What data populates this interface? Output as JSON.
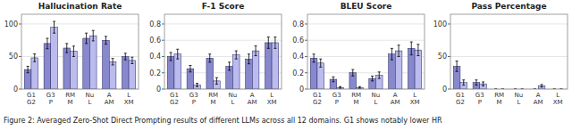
{
  "chart_data": [
    {
      "type": "bar",
      "title": "Hallucination Rate",
      "categories": [
        "G1\nG2",
        "G3\nP",
        "RM\nM",
        "Nu\nL",
        "A\nAM",
        "L\nXM"
      ],
      "series": [
        {
          "color": "#8888cc",
          "values": [
            30,
            70,
            63,
            78,
            75,
            50
          ],
          "errors": [
            5,
            8,
            7,
            8,
            6,
            5
          ]
        },
        {
          "color": "#bbbbee",
          "values": [
            48,
            95,
            58,
            82,
            42,
            44
          ],
          "errors": [
            6,
            9,
            8,
            8,
            5,
            5
          ]
        }
      ],
      "ylim": [
        0,
        115
      ],
      "yticks": [
        0,
        50,
        100
      ]
    },
    {
      "type": "bar",
      "title": "F-1 Score",
      "categories": [
        "G1\nG2",
        "G3\nP",
        "RM\nM",
        "Nu\nL",
        "A\nAM",
        "L\nXM"
      ],
      "series": [
        {
          "color": "#8888cc",
          "values": [
            0.4,
            0.25,
            0.38,
            0.28,
            0.37,
            0.57
          ],
          "errors": [
            0.05,
            0.04,
            0.05,
            0.05,
            0.06,
            0.07
          ]
        },
        {
          "color": "#bbbbee",
          "values": [
            0.43,
            0.05,
            0.1,
            0.42,
            0.47,
            0.57
          ],
          "errors": [
            0.06,
            0.02,
            0.04,
            0.05,
            0.06,
            0.07
          ]
        }
      ],
      "ylim": [
        0,
        0.92
      ],
      "yticks": [
        0,
        0.2,
        0.4,
        0.6,
        0.8
      ]
    },
    {
      "type": "bar",
      "title": "BLEU Score",
      "categories": [
        "G1\nG2",
        "G3\nP",
        "RM\nM",
        "Nu\nL",
        "A\nAM",
        "L\nXM"
      ],
      "series": [
        {
          "color": "#8888cc",
          "values": [
            0.38,
            0.12,
            0.2,
            0.13,
            0.43,
            0.5
          ],
          "errors": [
            0.05,
            0.03,
            0.04,
            0.03,
            0.07,
            0.08
          ]
        },
        {
          "color": "#bbbbee",
          "values": [
            0.32,
            0.02,
            0.02,
            0.17,
            0.47,
            0.48
          ],
          "errors": [
            0.05,
            0.01,
            0.01,
            0.04,
            0.07,
            0.07
          ]
        }
      ],
      "ylim": [
        0,
        0.92
      ],
      "yticks": [
        0,
        0.2,
        0.4,
        0.6,
        0.8
      ]
    },
    {
      "type": "bar",
      "title": "Pass Percentage",
      "categories": [
        "G1\nG2",
        "G3\nP",
        "RM\nM",
        "Nu\nL",
        "A\nAM",
        "L\nXM"
      ],
      "series": [
        {
          "color": "#8888cc",
          "values": [
            35,
            10,
            0,
            0,
            0,
            0
          ],
          "errors": [
            8,
            4,
            0,
            0,
            0,
            0
          ]
        },
        {
          "color": "#bbbbee",
          "values": [
            10,
            8,
            0,
            0,
            5,
            0
          ],
          "errors": [
            4,
            3,
            0,
            0,
            2,
            0
          ]
        }
      ],
      "ylim": [
        0,
        115
      ],
      "yticks": [
        0,
        50,
        100
      ]
    }
  ],
  "caption": "Figure 2: Averaged Zero-Shot Direct Prompting results of different LLMs across all 12 domains. G1 shows notably lower HR"
}
